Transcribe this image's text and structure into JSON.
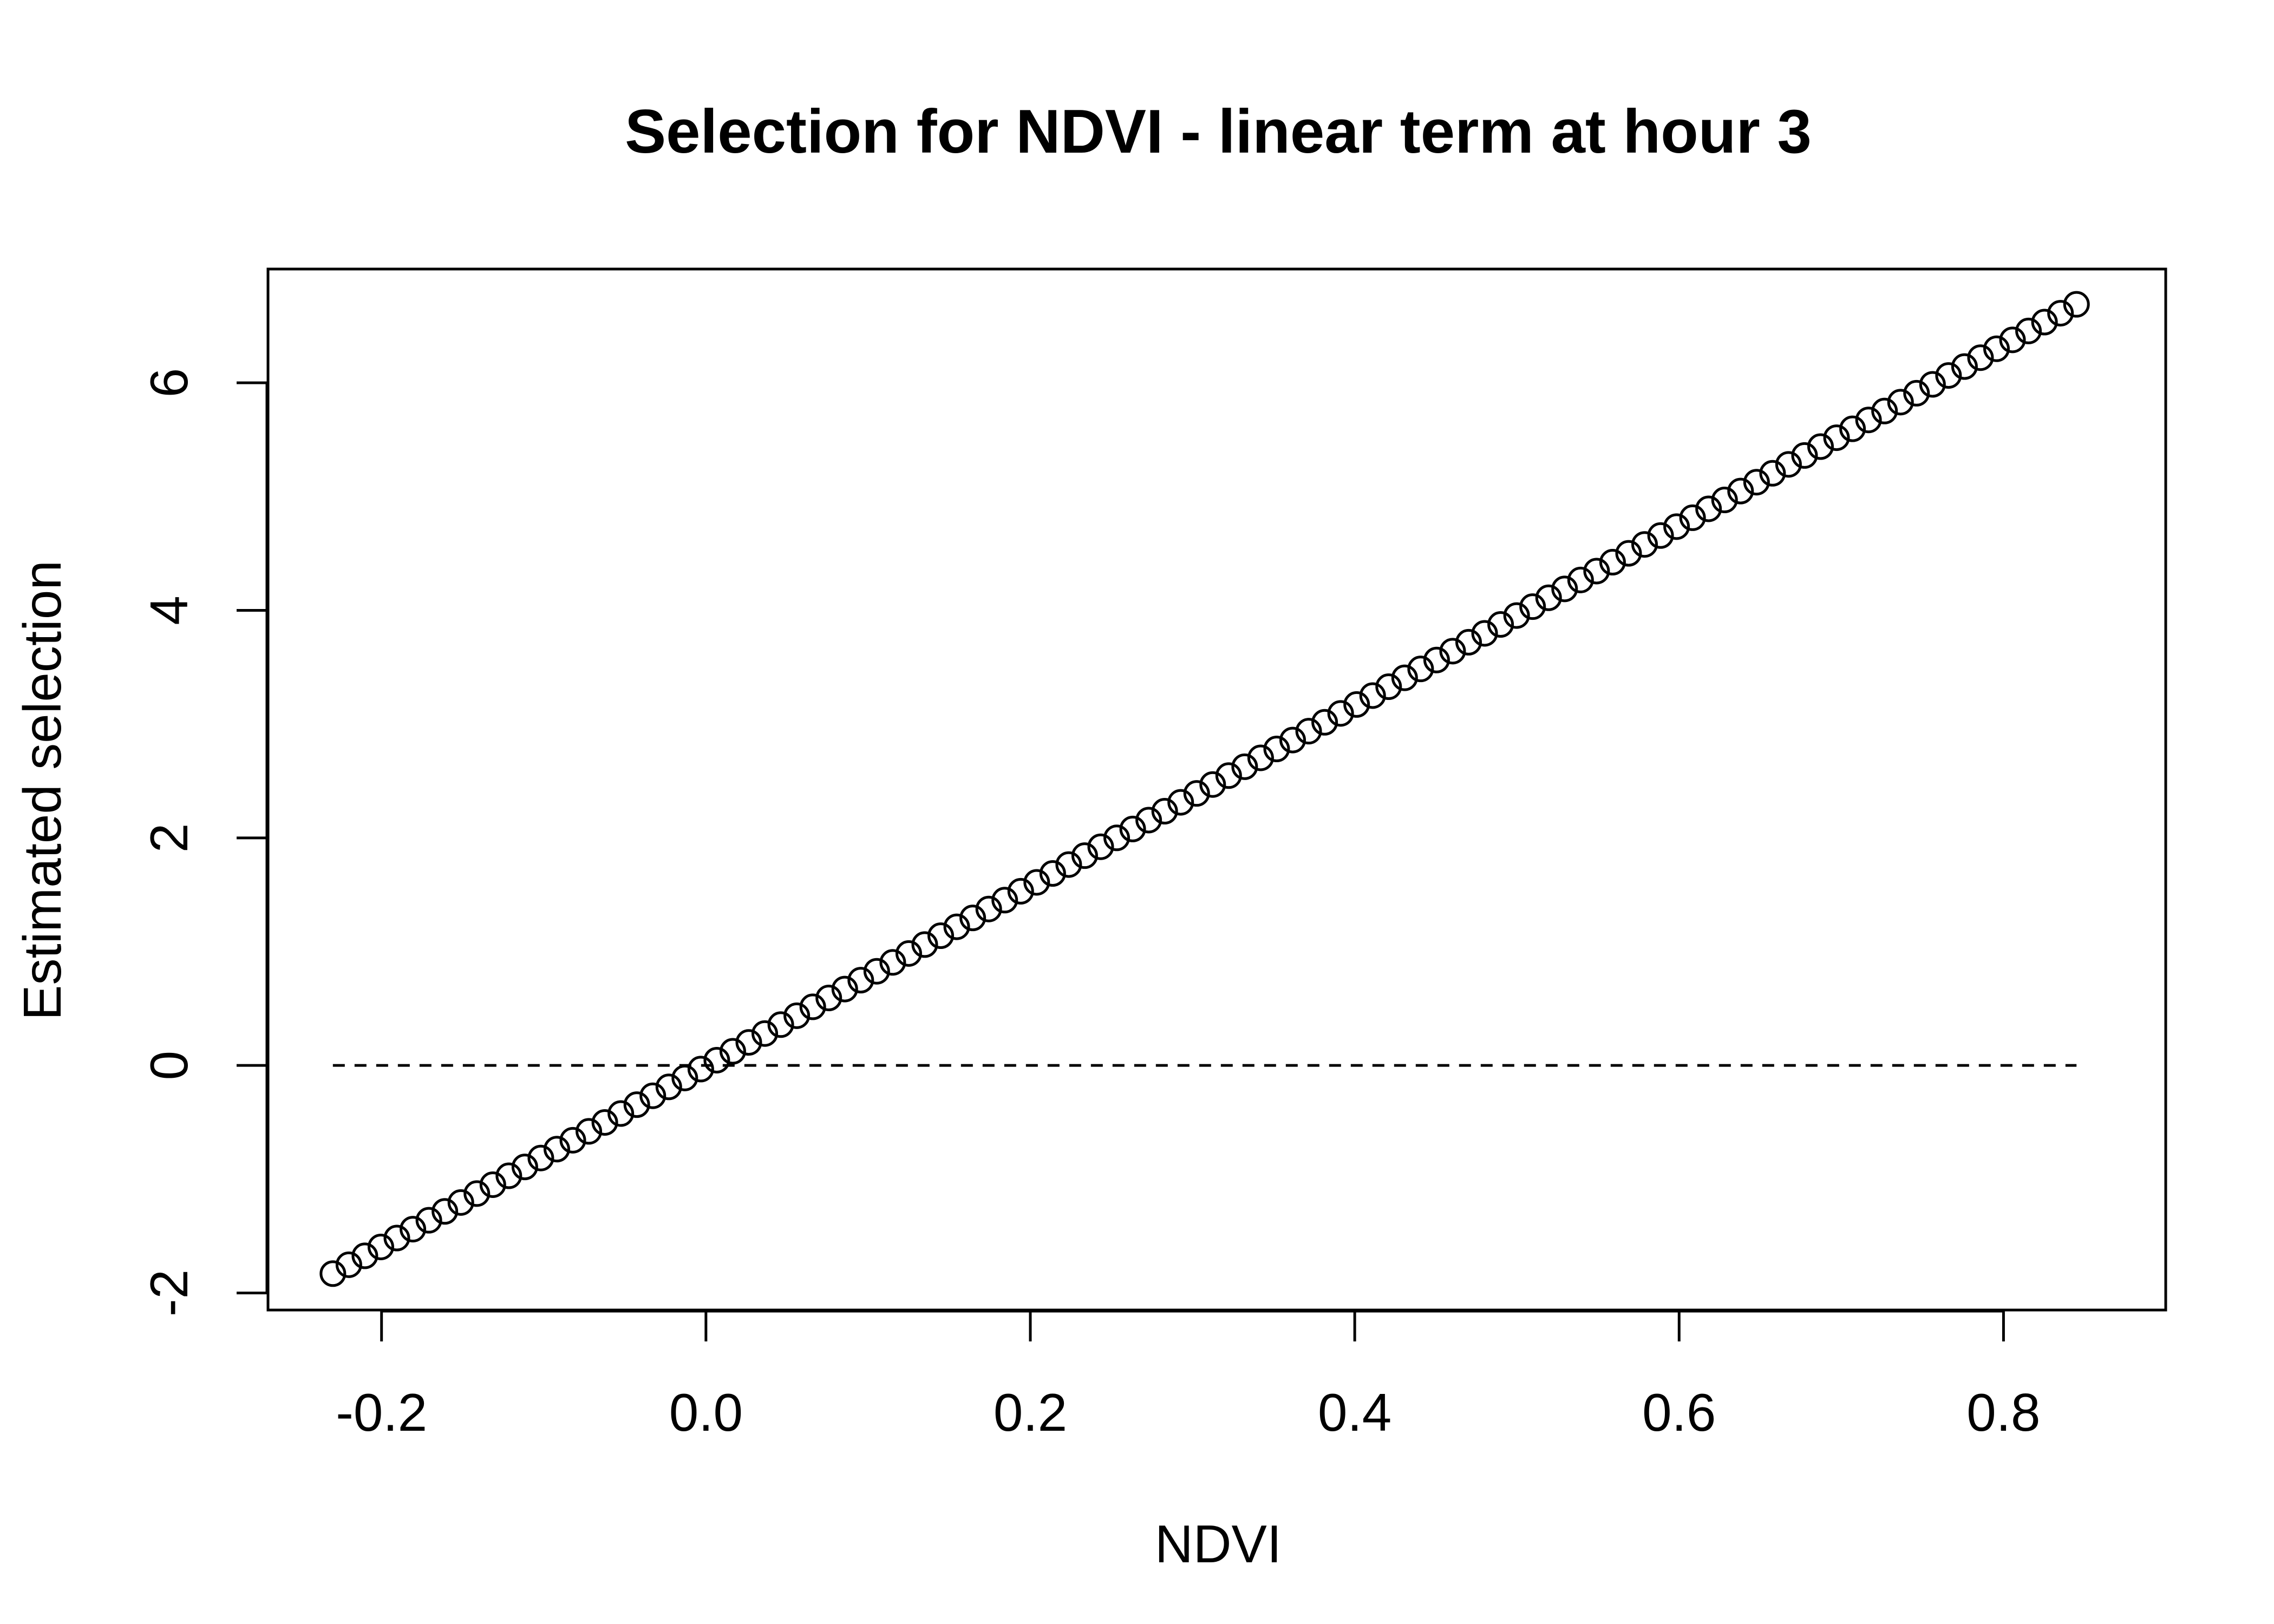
{
  "chart_data": {
    "type": "scatter",
    "title": "Selection for NDVI - linear term at hour 3",
    "xlabel": "NDVI",
    "ylabel": "Estimated selection",
    "xlim": [
      -0.27,
      0.9
    ],
    "ylim": [
      -2.15,
      7.0
    ],
    "x_ticks": [
      -0.2,
      0.0,
      0.2,
      0.4,
      0.6,
      0.8
    ],
    "x_tick_labels": [
      "-0.2",
      "0.0",
      "0.2",
      "0.4",
      "0.6",
      "0.8"
    ],
    "y_ticks": [
      -2,
      0,
      2,
      4,
      6
    ],
    "y_tick_labels": [
      "-2",
      "0",
      "2",
      "4",
      "6"
    ],
    "grid": false,
    "legend": "none",
    "marker": "open-circle",
    "series": [
      {
        "x_start": -0.23,
        "x_end": 0.845,
        "y_start": -1.83,
        "y_end": 6.69,
        "n_points": 110,
        "color": "#000000"
      }
    ],
    "reference_line": {
      "y": 0,
      "x_start": -0.23,
      "x_end": 0.845,
      "style": "dashed",
      "color": "#000000"
    }
  }
}
